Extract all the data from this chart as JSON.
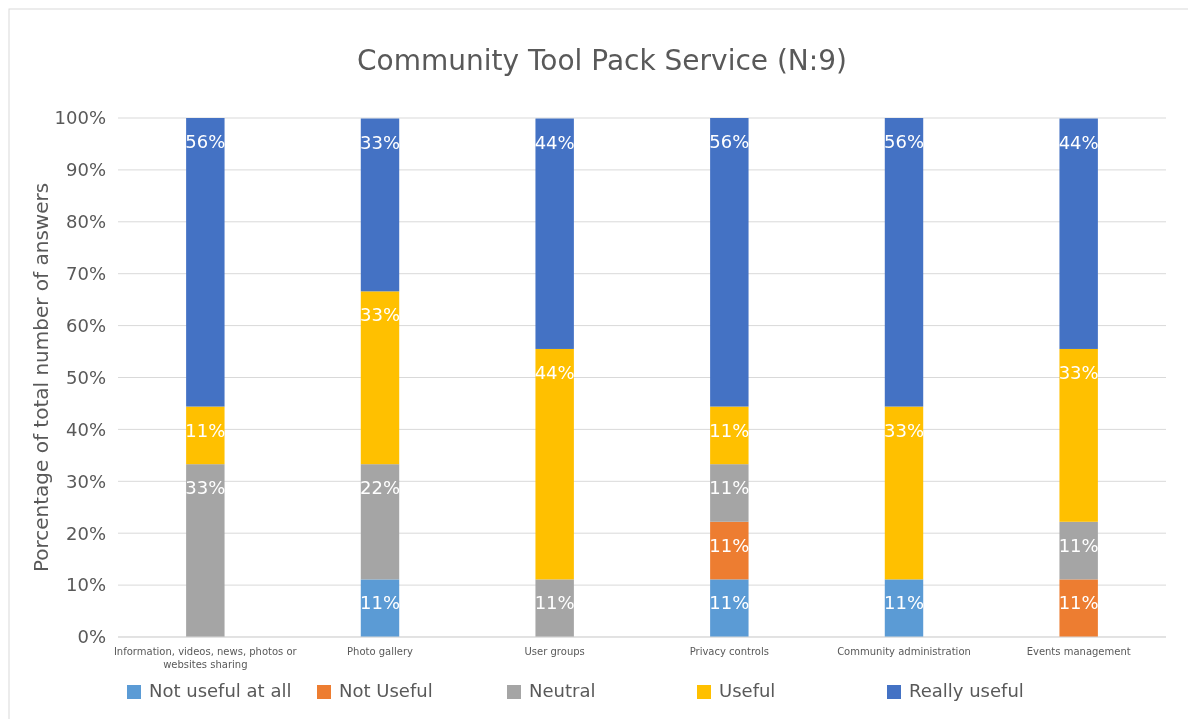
{
  "chart_data": {
    "type": "bar",
    "title": "Community Tool Pack Service (N:9)",
    "ylabel": "Porcentage of total number of answers",
    "categories": [
      "Information, videos, news, photos or websites sharing",
      "Photo gallery",
      "User groups",
      "Privacy controls",
      "Community administration",
      "Events management"
    ],
    "stacked": true,
    "ylim": [
      0,
      100
    ],
    "yticks": [
      {
        "value": 0,
        "label": "0%"
      },
      {
        "value": 10,
        "label": "10%"
      },
      {
        "value": 20,
        "label": "20%"
      },
      {
        "value": 30,
        "label": "30%"
      },
      {
        "value": 40,
        "label": "40%"
      },
      {
        "value": 50,
        "label": "50%"
      },
      {
        "value": 60,
        "label": "60%"
      },
      {
        "value": 70,
        "label": "70%"
      },
      {
        "value": 80,
        "label": "80%"
      },
      {
        "value": 90,
        "label": "90%"
      },
      {
        "value": 100,
        "label": "100%"
      }
    ],
    "grid": "y",
    "legend": "bottom",
    "series": [
      {
        "name": "Not useful at all",
        "color": "#5b9bd5",
        "values": [
          null,
          11.1,
          null,
          11.1,
          11.1,
          null
        ],
        "value_labels": [
          null,
          "11%",
          null,
          "11%",
          "11%",
          null
        ]
      },
      {
        "name": "Not Useful",
        "color": "#ed7d31",
        "values": [
          null,
          null,
          null,
          11.1,
          null,
          11.1
        ],
        "value_labels": [
          null,
          null,
          null,
          "11%",
          null,
          "11%"
        ]
      },
      {
        "name": "Neutral",
        "color": "#a5a5a5",
        "values": [
          33.3,
          22.2,
          11.1,
          11.1,
          null,
          11.1
        ],
        "value_labels": [
          "33%",
          "22%",
          "11%",
          "11%",
          null,
          "11%"
        ]
      },
      {
        "name": "Useful",
        "color": "#ffc000",
        "values": [
          11.1,
          33.3,
          44.4,
          11.1,
          33.3,
          33.3
        ],
        "value_labels": [
          "11%",
          "33%",
          "44%",
          "11%",
          "33%",
          "33%"
        ]
      },
      {
        "name": "Really useful",
        "color": "#4472c4",
        "values": [
          55.6,
          33.3,
          44.4,
          55.6,
          55.6,
          44.4
        ],
        "value_labels": [
          "56%",
          "33%",
          "44%",
          "56%",
          "56%",
          "44%"
        ]
      }
    ]
  }
}
